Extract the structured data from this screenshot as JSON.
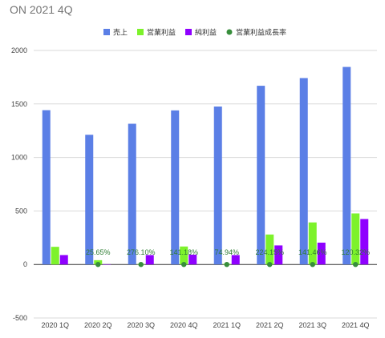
{
  "title": "ON 2021 4Q",
  "chart_data": {
    "type": "bar",
    "title": "ON 2021 4Q",
    "categories": [
      "2020 1Q",
      "2020 2Q",
      "2020 3Q",
      "2020 4Q",
      "2021 1Q",
      "2021 2Q",
      "2021 3Q",
      "2021 4Q"
    ],
    "ylim": [
      -500,
      2000
    ],
    "yticks": [
      2000,
      1500,
      1000,
      500,
      0,
      -500
    ],
    "grid": true,
    "legend_position": "top",
    "series": [
      {
        "name": "売上",
        "color": "#5b7fe6",
        "values": [
          1442,
          1212,
          1315,
          1440,
          1476,
          1670,
          1742,
          1846
        ]
      },
      {
        "name": "営業利益",
        "color": "#7df22b",
        "values": [
          165,
          40,
          3,
          168,
          5,
          280,
          393,
          477
        ]
      },
      {
        "name": "純利益",
        "color": "#8f00ff",
        "values": [
          88,
          2,
          88,
          92,
          88,
          178,
          204,
          425
        ]
      },
      {
        "name": "営業利益成長率",
        "color": "#388e3c",
        "type": "scatter",
        "values": [
          null,
          0,
          0,
          0,
          0,
          0,
          0,
          0
        ],
        "labels": [
          "",
          "25.65%",
          "276.10%",
          "141.18%",
          "74.94%",
          "224.15%",
          "141.46%",
          "120.32%"
        ]
      }
    ]
  }
}
